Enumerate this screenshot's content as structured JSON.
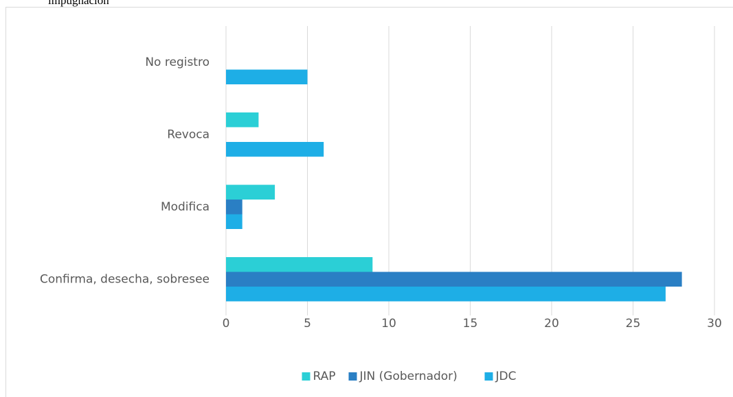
{
  "header_text": "impugnación",
  "chart_data": {
    "type": "hbar",
    "categories": [
      "No registro",
      "Revoca",
      "Modifica",
      "Confirma, desecha, sobresee"
    ],
    "series": [
      {
        "name": "RAP",
        "color": "#2bcfd6",
        "values": [
          0,
          2,
          3,
          9
        ]
      },
      {
        "name": "JIN (Gobernador)",
        "color": "#2a7fc4",
        "values": [
          0,
          0,
          1,
          28
        ]
      },
      {
        "name": "JDC",
        "color": "#1eaee6",
        "values": [
          5,
          6,
          1,
          27
        ]
      }
    ],
    "xlim": [
      0,
      30
    ],
    "xticks": [
      0,
      5,
      10,
      15,
      20,
      25,
      30
    ],
    "grid": true,
    "legend": "bottom"
  }
}
